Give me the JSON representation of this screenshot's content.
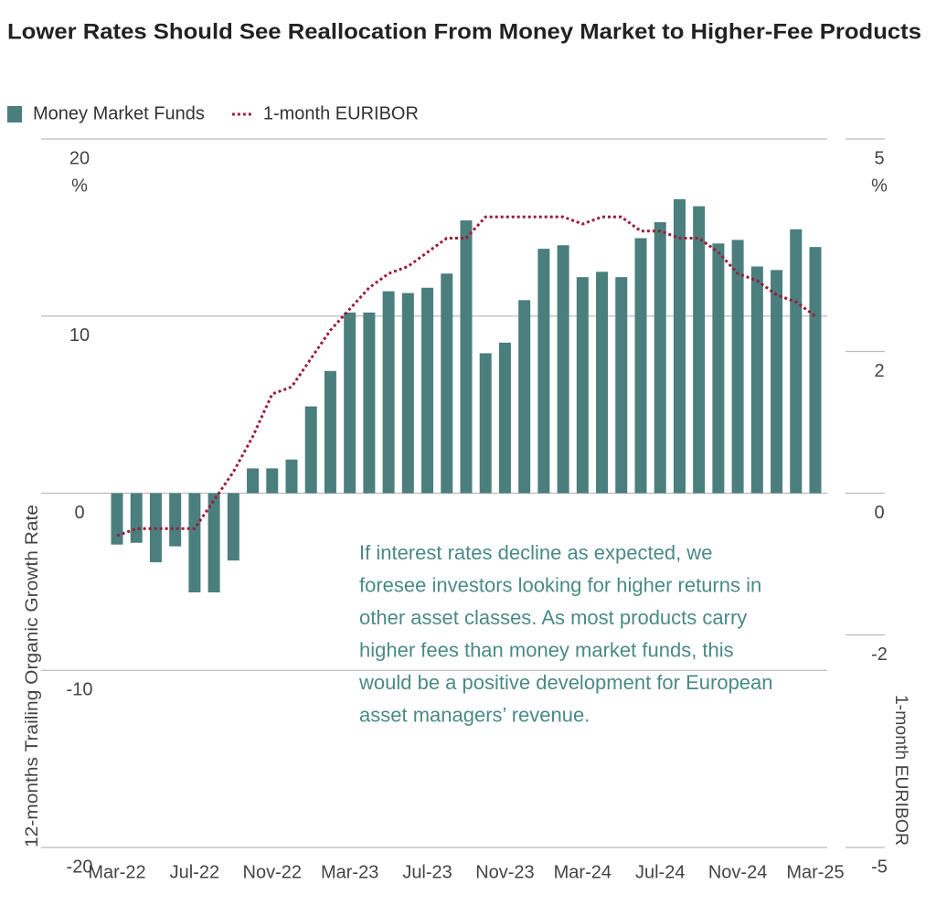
{
  "chart_data": {
    "type": "combo",
    "title": "Lower Rates Should See Reallocation From Money Market to Higher-Fee Products",
    "categories": [
      "Mar-22",
      null,
      null,
      null,
      "Jul-22",
      null,
      null,
      null,
      "Nov-22",
      null,
      null,
      null,
      "Mar-23",
      null,
      null,
      null,
      "Jul-23",
      null,
      null,
      null,
      "Nov-23",
      null,
      null,
      null,
      "Mar-24",
      null,
      null,
      null,
      "Jul-24",
      null,
      null,
      null,
      "Nov-24",
      null,
      null,
      null,
      "Mar-25"
    ],
    "series": [
      {
        "name": "Money Market Funds",
        "type": "bar",
        "axis": "y",
        "color": "#4a7f7d",
        "values": [
          -2.9,
          -2.8,
          -3.9,
          -3.0,
          -5.6,
          -5.6,
          -3.8,
          1.4,
          1.4,
          1.9,
          4.9,
          6.9,
          10.2,
          10.2,
          11.4,
          11.3,
          11.6,
          12.4,
          15.4,
          7.9,
          8.5,
          10.9,
          13.8,
          14.0,
          12.2,
          12.5,
          12.2,
          14.4,
          15.3,
          16.6,
          16.2,
          14.1,
          14.3,
          12.8,
          12.6,
          14.9,
          13.9
        ]
      },
      {
        "name": "1-month EURIBOR",
        "type": "line",
        "axis": "y2",
        "color": "#9b1c3c",
        "values": [
          -0.6,
          -0.5,
          -0.5,
          -0.5,
          -0.5,
          -0.1,
          0.3,
          0.8,
          1.4,
          1.5,
          1.9,
          2.3,
          2.6,
          2.9,
          3.1,
          3.2,
          3.4,
          3.6,
          3.6,
          3.9,
          3.9,
          3.9,
          3.9,
          3.9,
          3.8,
          3.9,
          3.9,
          3.7,
          3.7,
          3.6,
          3.6,
          3.4,
          3.1,
          3.0,
          2.8,
          2.7,
          2.5
        ]
      }
    ],
    "ylabel": "12-months Trailing Organic Growth Rate",
    "y2label": "1-month EURIBOR",
    "y_unit": "%",
    "y2_unit": "%",
    "ylim": [
      -20,
      20
    ],
    "yticks": [
      -20,
      -10,
      0,
      10,
      20
    ],
    "y2lim": [
      -5,
      5
    ],
    "y2ticks": [
      -5,
      -2,
      0,
      2,
      5
    ],
    "grid": true,
    "legend": "top-left",
    "annotation": [
      "If interest rates decline as expected, we",
      "foresee investors looking for higher returns in",
      "other asset classes. As most products carry",
      "higher fees than money market funds, this",
      "would be a positive development for European",
      "asset managers’ revenue."
    ],
    "annotation_color": "#4a8a87"
  }
}
